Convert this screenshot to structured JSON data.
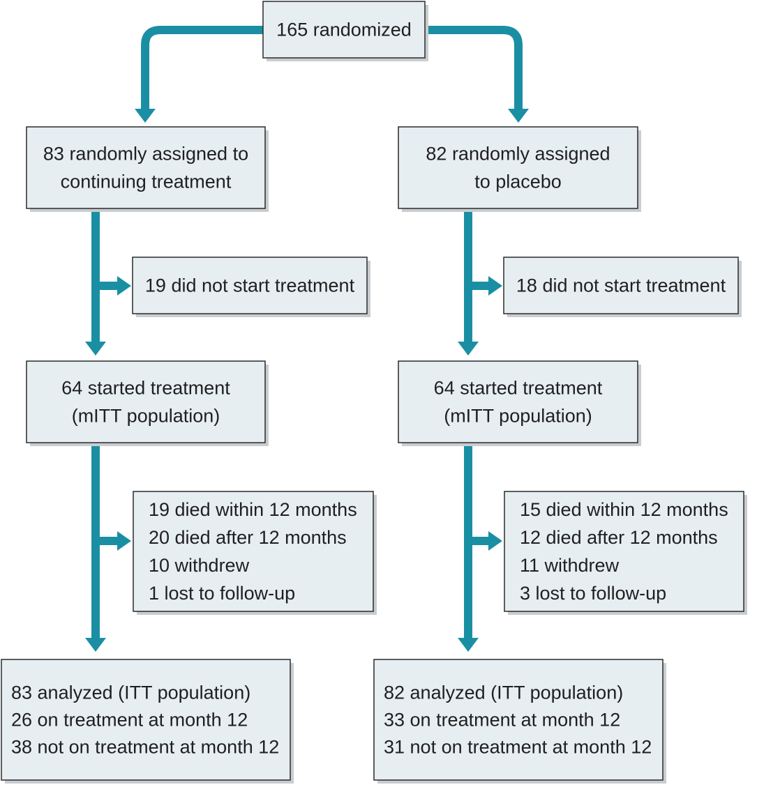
{
  "colors": {
    "connector": "#1a8fa3",
    "box_fill": "#e6eef2",
    "box_border": "#2a2a2a",
    "text": "#1f1f1f"
  },
  "boxes": {
    "randomized": [
      "165 randomized"
    ],
    "arm_treatment_assigned": [
      "83 randomly assigned to",
      "continuing treatment"
    ],
    "arm_placebo_assigned": [
      "82 randomly assigned",
      "to placebo"
    ],
    "arm_treatment_not_started": [
      "19 did not start treatment"
    ],
    "arm_placebo_not_started": [
      "18 did not start treatment"
    ],
    "arm_treatment_started": [
      "64 started treatment",
      "(mITT population)"
    ],
    "arm_placebo_started": [
      "64 started treatment",
      "(mITT population)"
    ],
    "arm_treatment_outcomes": [
      "19 died within 12 months",
      "20 died after 12 months",
      "10 withdrew",
      "1 lost to follow-up"
    ],
    "arm_placebo_outcomes": [
      "15 died within 12 months",
      "12 died after 12 months",
      "11 withdrew",
      "3 lost to follow-up"
    ],
    "arm_treatment_analyzed": [
      "83 analyzed (ITT population)",
      "26 on treatment at month 12",
      "38 not on treatment at month 12"
    ],
    "arm_placebo_analyzed": [
      "82 analyzed (ITT population)",
      "33 on treatment at month 12",
      "31 not on treatment at month 12"
    ]
  }
}
